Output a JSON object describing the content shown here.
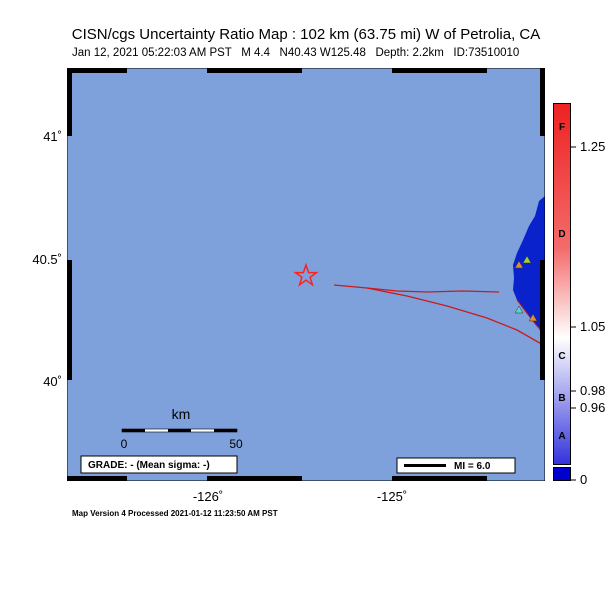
{
  "header": {
    "title": "CISN/cgs Uncertainty Ratio Map : 102 km (63.75 mi) W of Petrolia, CA",
    "subtitle": "Jan 12, 2021 05:22:03 AM PST   M 4.4   N40.43 W125.48   Depth: 2.2km   ID:73510010"
  },
  "axes": {
    "y_labels": [
      "41˚",
      "40.5˚",
      "40˚"
    ],
    "x_labels": [
      "-126˚",
      "-125˚"
    ]
  },
  "scale_bar": {
    "unit": "km",
    "min_label": "0",
    "max_label": "50"
  },
  "grade_box": {
    "text": "GRADE: - (Mean sigma: -)"
  },
  "mi_legend": {
    "text": "MI = 6.0"
  },
  "colorbar": {
    "grades": [
      "F",
      "D",
      "C",
      "B",
      "A"
    ],
    "values": [
      "1.25",
      "1.05",
      "0.98",
      "0.96",
      "0"
    ],
    "colors": {
      "top": "#ee2222",
      "middle": "#ffffff",
      "bottom": "#3333dd",
      "zero": "#0000cc"
    }
  },
  "map": {
    "ocean_color": "#7ea1dc",
    "land_color": "#0a22cc",
    "fault_color": "#cc1a1a",
    "epicenter_color": "#ff2020",
    "stations": [
      {
        "color": "#e08a3c"
      },
      {
        "color": "#9ed23a"
      },
      {
        "color": "#e08a3c"
      },
      {
        "color": "#5ed2c9"
      }
    ]
  },
  "footer": {
    "text": "Map Version 4 Processed 2021-01-12 11:23:50 AM PST"
  }
}
